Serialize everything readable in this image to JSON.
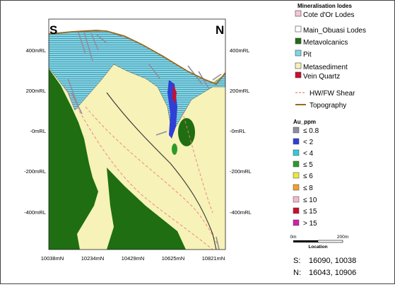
{
  "section": {
    "left_label": "S",
    "right_label": "N",
    "elevation_labels": [
      "400mRL",
      "200mRL",
      "-0mRL",
      "-200mRL",
      "-400mRL"
    ],
    "northing_labels": [
      "10038mN",
      "10234mN",
      "10429mN",
      "10625mN",
      "10821mN"
    ]
  },
  "legend": {
    "title": "Mineralisation lodes",
    "items": [
      {
        "label": "Cote d'Or Lodes",
        "color": "#f4c6d8"
      },
      {
        "label": "Main_Obuasi Lodes",
        "color": "#ffffff"
      },
      {
        "label": "Metavolcanics",
        "color": "#1f6e12"
      },
      {
        "label": "Pit",
        "color": "#7fd6e6"
      },
      {
        "label": "Metasediment",
        "color": "#f6f2b8"
      },
      {
        "label": "Vein Quartz",
        "color": "#c8102e"
      }
    ],
    "lines": [
      {
        "label": "HW/FW Shear",
        "color": "#f07c7c"
      },
      {
        "label": "Topography",
        "color": "#9a6a1e"
      }
    ],
    "au_title": "Au_ppm",
    "au_items": [
      {
        "label": "≤ 0.8",
        "color": "#8e8e9e"
      },
      {
        "label": "< 2",
        "color": "#2f3fd6"
      },
      {
        "label": "< 4",
        "color": "#36c8d8"
      },
      {
        "label": "≤ 5",
        "color": "#2e9a28"
      },
      {
        "label": "≤ 6",
        "color": "#e8e840"
      },
      {
        "label": "≤ 8",
        "color": "#f0a030"
      },
      {
        "label": "≤ 10",
        "color": "#f4b8c8"
      },
      {
        "label": "≤ 15",
        "color": "#c8102e"
      },
      {
        "label": "> 15",
        "color": "#d020a8"
      }
    ],
    "scale_start": "0m",
    "scale_end": "200m",
    "scale_caption": "Location"
  },
  "location": {
    "s_label": "S:",
    "s_value": "16090, 10038",
    "n_label": "N:",
    "n_value": "16043, 10906"
  }
}
